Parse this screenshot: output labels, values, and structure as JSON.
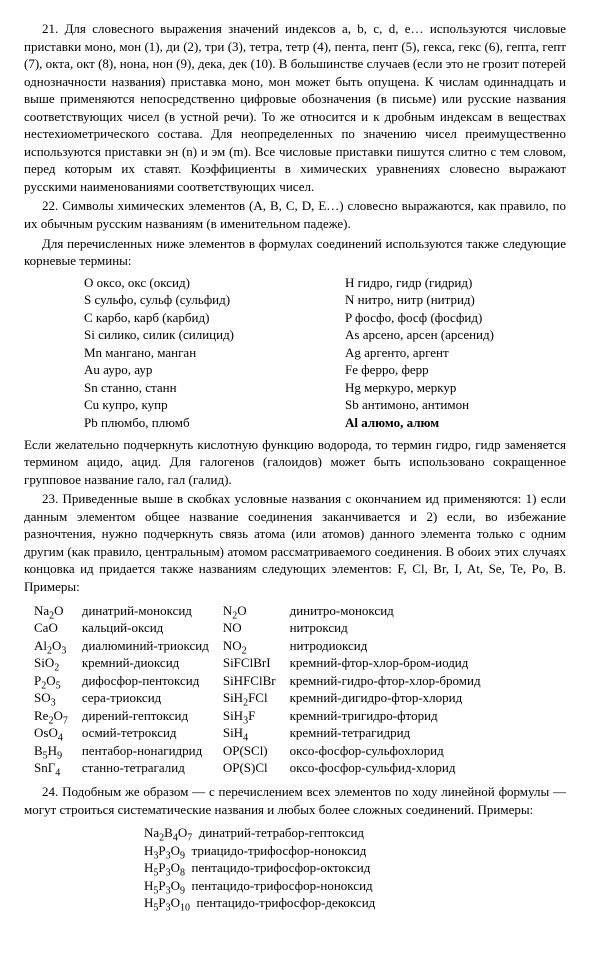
{
  "para21": "21. Для словесного выражения значений индексов a, b, c, d, e… используются числовые приставки моно, мон (1), ди (2), три (3), тетра, тетр (4), пента, пент (5), гекса, гекс (6), гепта, гепт (7), окта, окт (8), нона, нон (9), дека, дек (10). В большинстве случаев (если это не грозит потерей однозначности названия) приставка моно, мон может быть опущена. К числам одиннадцать и выше применяются непосредственно цифровые обозначения (в письме) или русские названия соответствующих чисел (в устной речи). То же относится и к дробным индексам в веществах нестехиометрического состава. Для неопределенных по значению чисел преимущественно используются приставки эн (n) и эм (m). Все числовые приставки пишутся слитно с тем словом, перед которым их ставят. Коэффициенты в химических уравнениях словесно выражают русскими наименованиями соответствующих чисел.",
  "para22a": "22. Символы химических элементов (A, B, C, D, E…) словесно выражаются, как правило, по их обычным русским названиям (в именительном падеже).",
  "para22b": "Для перечисленных ниже элементов в формулах соединений используются также следующие корневые термины:",
  "roots": {
    "left": [
      "O оксо, окс (оксид)",
      "S сульфо, сульф (сульфид)",
      "C карбо, карб (карбид)",
      "Si силико, силик (силицид)",
      "Mn мангано, манган",
      "Au ауро, аур",
      "Sn станно, станн",
      "Cu купро, купр",
      "Pb плюмбо, плюмб"
    ],
    "right": [
      "H гидро, гидр (гидрид)",
      "N нитро, нитр (нитрид)",
      "P фосфо, фосф (фосфид)",
      "As арсено, арсен (арсенид)",
      "Ag аргенто, аргент",
      "Fe ферро, ферр",
      "Hg меркуро, меркур",
      "Sb антимоно, антимон",
      "Al алюмо, алюм"
    ]
  },
  "para22c": "Если желательно подчеркнуть кислотную функцию водорода, то термин гидро, гидр заменяется термином ацидо, ацид. Для галогенов (галоидов) может быть использовано сокращенное групповое название гало, гал (галид).",
  "para23": "23. Приведенные выше в скобках условные названия с окончанием ид применяются: 1) если данным элементом общее название соединения заканчивается и 2) если, во избежание разночтения, нужно подчеркнуть связь атома (или атомов) данного элемента только с одним другим (как правило, центральным) атомом рассматриваемого соединения. В обоих этих случаях концовка ид придается также названиям следующих элементов: F, Cl, Br, I, At, Se, Te, Po, B. Примеры:",
  "examples": [
    [
      "Na₂O",
      "динатрий-моноксид",
      "N₂O",
      "динитро-моноксид"
    ],
    [
      "CaO",
      "кальций-оксид",
      "NO",
      "нитроксид"
    ],
    [
      "Al₂O₃",
      "диалюминий-триоксид",
      "NO₂",
      "нитродиоксид"
    ],
    [
      "SiO₂",
      "кремний-диоксид",
      "SiFClBrI",
      "кремний-фтор-хлор-бром-иодид"
    ],
    [
      "P₂O₅",
      "дифосфор-пентоксид",
      "SiHFClBr",
      "кремний-гидро-фтор-хлор-бромид"
    ],
    [
      "SO₃",
      "сера-триоксид",
      "SiH₂FCl",
      "кремний-дигидро-фтор-хлорид"
    ],
    [
      "Re₂O₇",
      "дирений-гептоксид",
      "SiH₃F",
      "кремний-тригидро-фторид"
    ],
    [
      "OsO₄",
      "осмий-тетроксид",
      "SiH₄",
      "кремний-тетрагидрид"
    ],
    [
      "B₅H₉",
      "пентабор-нонагидрид",
      "OP(SCl)",
      "оксо-фосфор-сульфохлорид"
    ],
    [
      "SnГ₄",
      "станно-тетрагалид",
      "OP(S)Cl",
      "оксо-фосфор-сульфид-хлорид"
    ]
  ],
  "para24": "24. Подобным же образом — с перечислением всех элементов по ходу линейной формулы — могут строиться систематические названия и любых более сложных соединений. Примеры:",
  "examples2": [
    [
      "Na₂B₄O₇",
      "динатрий-тетрабор-гептоксид"
    ],
    [
      "H₃P₃O₉",
      "триацидо-трифосфор-ноноксид"
    ],
    [
      "H₅P₃O₈",
      "пентацидо-трифосфор-октоксид"
    ],
    [
      "H₅P₃O₉",
      "пентацидо-трифосфор-ноноксид"
    ],
    [
      "H₅P₃O₁₀",
      "пентацидо-трифосфор-декоксид"
    ]
  ]
}
